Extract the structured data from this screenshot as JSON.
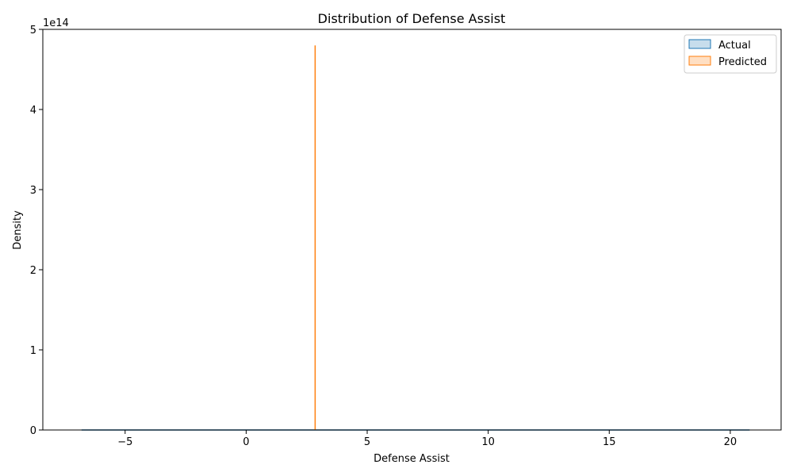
{
  "chart_data": {
    "type": "area",
    "title": "Distribution of Defense Assist",
    "xlabel": "Defense Assist",
    "ylabel": "Density",
    "y_offset_label": "1e14",
    "xlim": [
      -8.4,
      22.1
    ],
    "ylim": [
      0,
      500000000000000.0
    ],
    "xticks": [
      -5,
      0,
      5,
      10,
      15,
      20
    ],
    "xtick_labels": [
      "−5",
      "0",
      "5",
      "10",
      "15",
      "20"
    ],
    "yticks": [
      0,
      100000000000000.0,
      200000000000000.0,
      300000000000000.0,
      400000000000000.0,
      500000000000000.0
    ],
    "ytick_labels": [
      "0",
      "1",
      "2",
      "3",
      "4",
      "5"
    ],
    "grid": false,
    "legend_position": "top-right",
    "series": [
      {
        "name": "Actual",
        "color": "#1f77b4",
        "x": [
          -6.8,
          20.8
        ],
        "y": [
          0,
          0
        ]
      },
      {
        "name": "Predicted",
        "color": "#ff7f0e",
        "x": [
          2.85,
          2.85,
          2.85
        ],
        "y": [
          0,
          480000000000000.0,
          0
        ]
      }
    ]
  }
}
